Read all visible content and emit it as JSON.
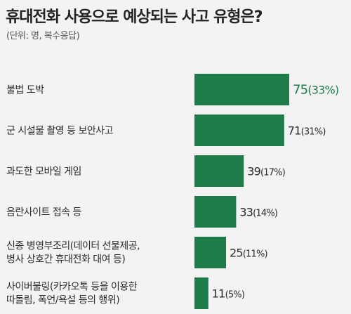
{
  "header": {
    "title": "휴대전화 사용으로 예상되는 사고 유형은?",
    "subtitle": "(단위: 명, 복수응답)"
  },
  "colors": {
    "bar": "#1e7b4a",
    "highlight_text": "#1f7a4a",
    "text": "#2b2b2b",
    "background": "#f3f3f3"
  },
  "chart_data": {
    "type": "bar",
    "orientation": "horizontal",
    "title": "휴대전화 사용으로 예상되는 사고 유형은?",
    "subtitle": "(단위: 명, 복수응답)",
    "categories": [
      [
        "불법 도박"
      ],
      [
        "군 시설물 촬영 등 보안사고"
      ],
      [
        "과도한 모바일 게임"
      ],
      [
        "음란사이트 접속 등"
      ],
      [
        "신종 병영부조리(데이터 선물제공,",
        "병사 상호간 휴대전화 대여 등)"
      ],
      [
        "사이버불링(카카오톡 등을 이용한",
        "따돌림, 폭언/욕설 등의 행위)"
      ]
    ],
    "values": [
      75,
      71,
      39,
      33,
      25,
      11
    ],
    "percent_labels": [
      "(33%)",
      "(31%)",
      "(17%)",
      "(14%)",
      "(11%)",
      "(5%)"
    ],
    "value_labels": [
      "75",
      "71",
      "39",
      "33",
      "25",
      "11"
    ],
    "highlight_index": 0,
    "xlim": [
      0,
      75
    ],
    "grid": false,
    "legend": "none"
  }
}
